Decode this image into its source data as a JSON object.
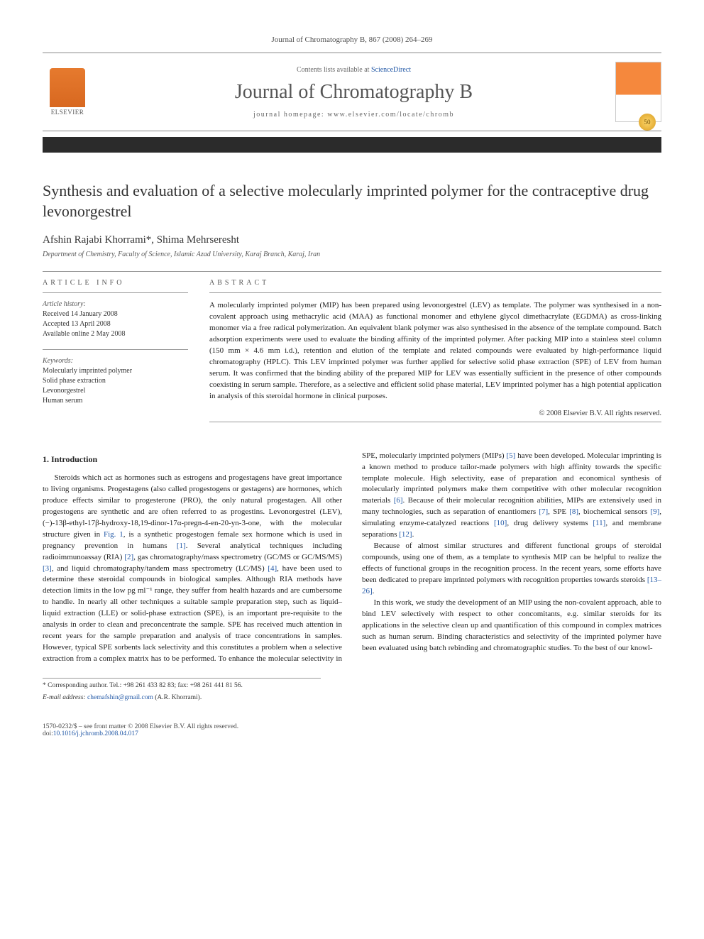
{
  "journal_header_line": "Journal of Chromatography B, 867 (2008) 264–269",
  "header": {
    "contents_prefix": "Contents lists available at ",
    "contents_link": "ScienceDirect",
    "journal_name": "Journal of Chromatography B",
    "homepage_prefix": "journal homepage: ",
    "homepage": "www.elsevier.com/locate/chromb",
    "elsevier_label": "ELSEVIER",
    "badge": "50"
  },
  "title": "Synthesis and evaluation of a selective molecularly imprinted polymer for the contraceptive drug levonorgestrel",
  "authors": "Afshin Rajabi Khorrami*, Shima Mehrseresht",
  "affiliation": "Department of Chemistry, Faculty of Science, Islamic Azad University, Karaj Branch, Karaj, Iran",
  "info": {
    "label": "ARTICLE INFO",
    "history_label": "Article history:",
    "history": [
      "Received 14 January 2008",
      "Accepted 13 April 2008",
      "Available online 2 May 2008"
    ],
    "keywords_label": "Keywords:",
    "keywords": [
      "Molecularly imprinted polymer",
      "Solid phase extraction",
      "Levonorgestrel",
      "Human serum"
    ]
  },
  "abstract": {
    "label": "ABSTRACT",
    "text": "A molecularly imprinted polymer (MIP) has been prepared using levonorgestrel (LEV) as template. The polymer was synthesised in a non-covalent approach using methacrylic acid (MAA) as functional monomer and ethylene glycol dimethacrylate (EGDMA) as cross-linking monomer via a free radical polymerization. An equivalent blank polymer was also synthesised in the absence of the template compound. Batch adsorption experiments were used to evaluate the binding affinity of the imprinted polymer. After packing MIP into a stainless steel column (150 mm × 4.6 mm i.d.), retention and elution of the template and related compounds were evaluated by high-performance liquid chromatography (HPLC). This LEV imprinted polymer was further applied for selective solid phase extraction (SPE) of LEV from human serum. It was confirmed that the binding ability of the prepared MIP for LEV was essentially sufficient in the presence of other compounds coexisting in serum sample. Therefore, as a selective and efficient solid phase material, LEV imprinted polymer has a high potential application in analysis of this steroidal hormone in clinical purposes.",
    "copyright": "© 2008 Elsevier B.V. All rights reserved."
  },
  "intro": {
    "heading": "1. Introduction",
    "p1a": "Steroids which act as hormones such as estrogens and progestagens have great importance to living organisms. Progestagens (also called progestogens or gestagens) are hormones, which produce effects similar to progesterone (PRO), the only natural progestagen. All other progestogens are synthetic and are often referred to as progestins. Levonorgestrel (LEV), (−)-13β-ethyl-17β-hydroxy-18,19-dinor-17α-pregn-4-en-20-yn-3-one, with the molecular structure given in ",
    "fig1": "Fig. 1",
    "p1b": ", is a synthetic progestogen female sex hormone which is used in pregnancy prevention in humans ",
    "r1": "[1]",
    "p1c": ". Several analytical techniques including radioimmunoassay (RIA) ",
    "r2": "[2]",
    "p1d": ", gas chromatography/mass spectrometry (GC/MS or GC/MS/MS) ",
    "r3": "[3]",
    "p1e": ", and liquid chromatography/tandem mass spectrometry (LC/MS) ",
    "r4": "[4]",
    "p1f": ", have been used to determine these steroidal compounds in biological samples. Although RIA methods have detection limits in the low pg ml⁻¹ range, they suffer from health hazards and are cumbersome to handle. In nearly all other techniques a suitable sample preparation step, such as liquid–liquid extraction (LLE) or solid-phase extraction (SPE), is an important pre-requisite to the analysis in order to clean and preconcentrate the sample. SPE has received much attention in recent years for the sample preparation and analysis of trace concentra",
    "p2a": "tions in samples. However, typical SPE sorbents lack selectivity and this constitutes a problem when a selective extraction from a complex matrix has to be performed. To enhance the molecular selectivity in SPE, molecularly imprinted polymers (MIPs) ",
    "r5": "[5]",
    "p2b": " have been developed. Molecular imprinting is a known method to produce tailor-made polymers with high affinity towards the specific template molecule. High selectivity, ease of preparation and economical synthesis of molecularly imprinted polymers make them competitive with other molecular recognition materials ",
    "r6": "[6]",
    "p2c": ". Because of their molecular recognition abilities, MIPs are extensively used in many technologies, such as separation of enantiomers ",
    "r7": "[7]",
    "p2d": ", SPE ",
    "r8": "[8]",
    "p2e": ", biochemical sensors ",
    "r9": "[9]",
    "p2f": ", simulating enzyme-catalyzed reactions ",
    "r10": "[10]",
    "p2g": ", drug delivery systems ",
    "r11": "[11]",
    "p2h": ", and membrane separations ",
    "r12": "[12]",
    "p2i": ".",
    "p3a": "Because of almost similar structures and different functional groups of steroidal compounds, using one of them, as a template to synthesis MIP can be helpful to realize the effects of functional groups in the recognition process. In the recent years, some efforts have been dedicated to prepare imprinted polymers with recognition properties towards steroids ",
    "r1326": "[13–26]",
    "p3b": ".",
    "p4": "In this work, we study the development of an MIP using the non-covalent approach, able to bind LEV selectively with respect to other concomitants, e.g. similar steroids for its applications in the selective clean up and quantification of this compound in complex matrices such as human serum. Binding characteristics and selectivity of the imprinted polymer have been evaluated using batch rebinding and chromatographic studies. To the best of our knowl-"
  },
  "footnote": {
    "corr": "* Corresponding author. Tel.: +98 261 433 82 83; fax: +98 261 441 81 56.",
    "email_label": "E-mail address: ",
    "email": "chemafshin@gmail.com",
    "email_suffix": " (A.R. Khorrami)."
  },
  "footer": {
    "left1": "1570-0232/$ – see front matter © 2008 Elsevier B.V. All rights reserved.",
    "left2_prefix": "doi:",
    "doi": "10.1016/j.jchromb.2008.04.017"
  },
  "colors": {
    "link": "#2258a6",
    "elsevier_orange": "#e67a2e",
    "text": "#222222",
    "rule": "#999999"
  }
}
